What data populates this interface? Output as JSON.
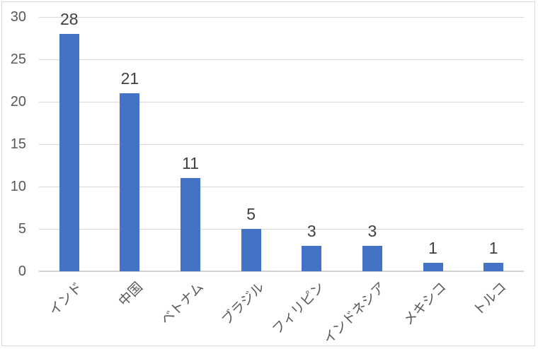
{
  "chart_data": {
    "type": "bar",
    "categories": [
      "インド",
      "中国",
      "ベトナム",
      "ブラジル",
      "フィリピン",
      "インドネシア",
      "メキシコ",
      "トルコ"
    ],
    "values": [
      28,
      21,
      11,
      5,
      3,
      3,
      1,
      1
    ],
    "data_labels": [
      "28",
      "21",
      "11",
      "5",
      "3",
      "3",
      "1",
      "1"
    ],
    "title": "",
    "xlabel": "",
    "ylabel": "",
    "ylim": [
      0,
      30
    ],
    "yticks": [
      0,
      5,
      10,
      15,
      20,
      25,
      30
    ],
    "grid": true,
    "legend": false,
    "colors": {
      "bar": "#4472C4",
      "gridline": "#D9D9D9",
      "axis_line": "#D2D2D2",
      "tick_label": "#595959",
      "data_label": "#404040",
      "border": "#D9D9D9",
      "background": "#FFFFFF"
    }
  }
}
